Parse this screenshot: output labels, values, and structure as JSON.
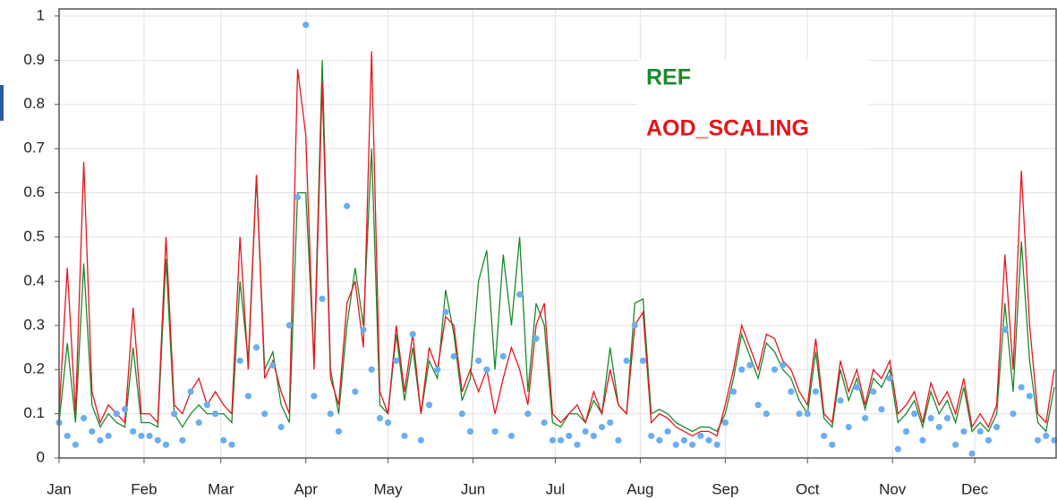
{
  "chart_data": {
    "type": "line",
    "x": [
      1,
      4,
      7,
      10,
      13,
      16,
      19,
      22,
      25,
      28,
      31,
      34,
      37,
      40,
      43,
      46,
      49,
      52,
      55,
      58,
      61,
      64,
      67,
      70,
      73,
      76,
      79,
      82,
      85,
      88,
      91,
      94,
      97,
      100,
      103,
      106,
      109,
      112,
      115,
      118,
      121,
      124,
      127,
      130,
      133,
      136,
      139,
      142,
      145,
      148,
      151,
      154,
      157,
      160,
      163,
      166,
      169,
      172,
      175,
      178,
      181,
      184,
      187,
      190,
      193,
      196,
      199,
      202,
      205,
      208,
      211,
      214,
      217,
      220,
      223,
      226,
      229,
      232,
      235,
      238,
      241,
      244,
      247,
      250,
      253,
      256,
      259,
      262,
      265,
      268,
      271,
      274,
      277,
      280,
      283,
      286,
      289,
      292,
      295,
      298,
      301,
      304,
      307,
      310,
      313,
      316,
      319,
      322,
      325,
      328,
      331,
      334,
      337,
      340,
      343,
      346,
      349,
      352,
      355,
      358,
      361,
      364
    ],
    "xlim": [
      1,
      365
    ],
    "xticks": [
      {
        "value": 1,
        "label": "Jan"
      },
      {
        "value": 32,
        "label": "Feb"
      },
      {
        "value": 60,
        "label": "Mar"
      },
      {
        "value": 91,
        "label": "Apr"
      },
      {
        "value": 121,
        "label": "May"
      },
      {
        "value": 152,
        "label": "Jun"
      },
      {
        "value": 182,
        "label": "Jul"
      },
      {
        "value": 213,
        "label": "Aug"
      },
      {
        "value": 244,
        "label": "Sep"
      },
      {
        "value": 274,
        "label": "Oct"
      },
      {
        "value": 305,
        "label": "Nov"
      },
      {
        "value": 335,
        "label": "Dec"
      }
    ],
    "ylim": [
      0,
      1.016
    ],
    "yticks": [
      0,
      0.1,
      0.2,
      0.3,
      0.4,
      0.5,
      0.6,
      0.7,
      0.8,
      0.9,
      1
    ],
    "grid": true,
    "series": [
      {
        "name": "REF",
        "color": "#1a8a2a",
        "type": "line",
        "values": [
          0.08,
          0.26,
          0.08,
          0.44,
          0.12,
          0.07,
          0.1,
          0.08,
          0.07,
          0.25,
          0.08,
          0.08,
          0.07,
          0.45,
          0.1,
          0.07,
          0.1,
          0.12,
          0.1,
          0.1,
          0.1,
          0.08,
          0.4,
          0.22,
          0.64,
          0.2,
          0.24,
          0.12,
          0.08,
          0.6,
          0.6,
          0.22,
          0.9,
          0.2,
          0.1,
          0.3,
          0.43,
          0.3,
          0.7,
          0.12,
          0.1,
          0.28,
          0.13,
          0.25,
          0.1,
          0.22,
          0.18,
          0.38,
          0.28,
          0.13,
          0.18,
          0.4,
          0.47,
          0.2,
          0.46,
          0.3,
          0.5,
          0.15,
          0.35,
          0.3,
          0.08,
          0.07,
          0.1,
          0.1,
          0.08,
          0.13,
          0.1,
          0.25,
          0.12,
          0.1,
          0.35,
          0.36,
          0.1,
          0.11,
          0.1,
          0.08,
          0.07,
          0.06,
          0.07,
          0.07,
          0.06,
          0.1,
          0.18,
          0.28,
          0.23,
          0.18,
          0.26,
          0.24,
          0.2,
          0.18,
          0.13,
          0.1,
          0.24,
          0.09,
          0.07,
          0.2,
          0.13,
          0.18,
          0.11,
          0.18,
          0.16,
          0.2,
          0.08,
          0.1,
          0.13,
          0.07,
          0.15,
          0.1,
          0.13,
          0.08,
          0.16,
          0.06,
          0.08,
          0.06,
          0.1,
          0.35,
          0.15,
          0.49,
          0.22,
          0.08,
          0.06,
          0.16
        ]
      },
      {
        "name": "AOD_SCALING",
        "color": "#e8141a",
        "type": "line",
        "values": [
          0.1,
          0.43,
          0.1,
          0.67,
          0.15,
          0.08,
          0.12,
          0.1,
          0.08,
          0.34,
          0.1,
          0.1,
          0.08,
          0.5,
          0.12,
          0.1,
          0.15,
          0.18,
          0.12,
          0.15,
          0.12,
          0.1,
          0.5,
          0.2,
          0.64,
          0.18,
          0.22,
          0.15,
          0.1,
          0.88,
          0.73,
          0.2,
          0.85,
          0.18,
          0.12,
          0.35,
          0.4,
          0.25,
          0.92,
          0.15,
          0.1,
          0.3,
          0.15,
          0.28,
          0.1,
          0.25,
          0.2,
          0.32,
          0.3,
          0.15,
          0.2,
          0.15,
          0.2,
          0.1,
          0.18,
          0.25,
          0.2,
          0.12,
          0.3,
          0.35,
          0.1,
          0.08,
          0.1,
          0.12,
          0.08,
          0.15,
          0.1,
          0.2,
          0.12,
          0.1,
          0.3,
          0.33,
          0.08,
          0.1,
          0.09,
          0.07,
          0.06,
          0.05,
          0.06,
          0.06,
          0.05,
          0.12,
          0.2,
          0.3,
          0.25,
          0.2,
          0.28,
          0.27,
          0.22,
          0.2,
          0.15,
          0.12,
          0.27,
          0.1,
          0.08,
          0.22,
          0.15,
          0.2,
          0.12,
          0.2,
          0.18,
          0.22,
          0.1,
          0.12,
          0.15,
          0.08,
          0.17,
          0.12,
          0.15,
          0.1,
          0.18,
          0.07,
          0.1,
          0.07,
          0.12,
          0.46,
          0.2,
          0.65,
          0.3,
          0.1,
          0.08,
          0.2
        ]
      },
      {
        "color": "#6aaef0",
        "type": "scatter",
        "values": [
          0.08,
          0.05,
          0.03,
          0.09,
          0.06,
          0.04,
          0.05,
          0.1,
          0.11,
          0.06,
          0.05,
          0.05,
          0.04,
          0.03,
          0.1,
          0.04,
          0.15,
          0.08,
          0.12,
          0.1,
          0.04,
          0.03,
          0.22,
          0.14,
          0.25,
          0.1,
          0.21,
          0.07,
          0.3,
          0.59,
          0.98,
          0.14,
          0.36,
          0.1,
          0.06,
          0.57,
          0.15,
          0.29,
          0.2,
          0.09,
          0.08,
          0.22,
          0.05,
          0.28,
          0.04,
          0.12,
          0.2,
          0.33,
          0.23,
          0.1,
          0.06,
          0.22,
          0.2,
          0.06,
          0.23,
          0.05,
          0.37,
          0.1,
          0.27,
          0.08,
          0.04,
          0.04,
          0.05,
          0.03,
          0.06,
          0.05,
          0.07,
          0.08,
          0.04,
          0.22,
          0.3,
          0.22,
          0.05,
          0.04,
          0.06,
          0.03,
          0.04,
          0.03,
          0.05,
          0.04,
          0.03,
          0.08,
          0.15,
          0.2,
          0.21,
          0.12,
          0.1,
          0.2,
          0.21,
          0.15,
          0.1,
          0.1,
          0.15,
          0.05,
          0.03,
          0.13,
          0.07,
          0.16,
          0.09,
          0.15,
          0.11,
          0.18,
          0.02,
          0.06,
          0.1,
          0.04,
          0.09,
          0.07,
          0.09,
          0.03,
          0.06,
          0.01,
          0.06,
          0.04,
          0.07,
          0.29,
          0.1,
          0.16,
          0.14,
          0.04,
          0.05,
          0.04
        ]
      }
    ]
  }
}
